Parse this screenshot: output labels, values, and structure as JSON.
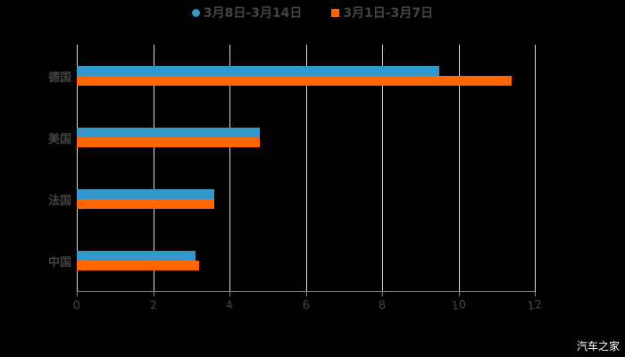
{
  "chart_data": {
    "type": "bar",
    "orientation": "horizontal",
    "title": "",
    "categories": [
      "中国",
      "法国",
      "美国",
      "德国"
    ],
    "series": [
      {
        "name": "3月8日-3月14日",
        "color": "#3399cc",
        "values": [
          3.1,
          3.6,
          4.8,
          9.5
        ]
      },
      {
        "name": "3月1日-3月7日",
        "color": "#ff6600",
        "values": [
          3.2,
          3.6,
          4.8,
          11.4
        ]
      }
    ],
    "xlabel": "",
    "ylabel": "",
    "xlim": [
      0,
      12
    ],
    "xticks": [
      "0",
      "2",
      "4",
      "6",
      "8",
      "10",
      "12"
    ],
    "grid": true,
    "legend_position": "top"
  },
  "legend": [
    {
      "label": "3月8日-3月14日",
      "color": "#3399cc",
      "shape": "circle"
    },
    {
      "label": "3月1日-3月7日",
      "color": "#ff6600",
      "shape": "square"
    }
  ],
  "watermark": "汽车之家"
}
